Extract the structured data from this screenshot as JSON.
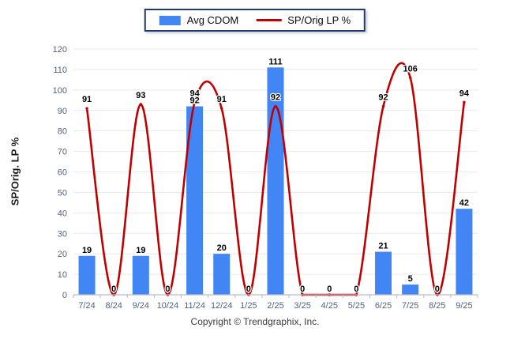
{
  "legend": {
    "items": [
      {
        "label": "Avg CDOM",
        "swatch": "bar",
        "color": "#4285f4"
      },
      {
        "label": "SP/Orig LP %",
        "swatch": "line",
        "color": "#c00000"
      }
    ]
  },
  "footer": {
    "text": "Copyright © Trendgraphix, Inc."
  },
  "chart_data": {
    "type": "combo-bar-line",
    "categories": [
      "7/24",
      "8/24",
      "9/24",
      "10/24",
      "11/24",
      "12/24",
      "1/25",
      "2/25",
      "3/25",
      "4/25",
      "5/25",
      "6/25",
      "7/25",
      "8/25",
      "9/25"
    ],
    "series": [
      {
        "name": "Avg CDOM",
        "type": "bar",
        "color": "#4285f4",
        "values": [
          19,
          0,
          19,
          0,
          92,
          20,
          0,
          111,
          0,
          0,
          0,
          21,
          5,
          0,
          42
        ]
      },
      {
        "name": "SP/Orig LP %",
        "type": "line",
        "color": "#c00000",
        "smooth": true,
        "markers": true,
        "values": [
          91,
          0,
          93,
          0,
          94,
          91,
          0,
          92,
          0,
          0,
          0,
          92,
          106,
          0,
          94
        ]
      }
    ],
    "title": "",
    "xlabel": "",
    "ylabel": "SP/Orig. LP %",
    "ylim": [
      0,
      120
    ],
    "ytick_step": 10,
    "grid": true,
    "value_labels": true,
    "legend_position": "top-center",
    "colors": {
      "grid": "#e7e9ef",
      "baseline": "#b6bcc6",
      "axis_tick": "#b6bcc6",
      "tick_text": "#51637d",
      "bar": "#4285f4",
      "line": "#c00000"
    }
  }
}
